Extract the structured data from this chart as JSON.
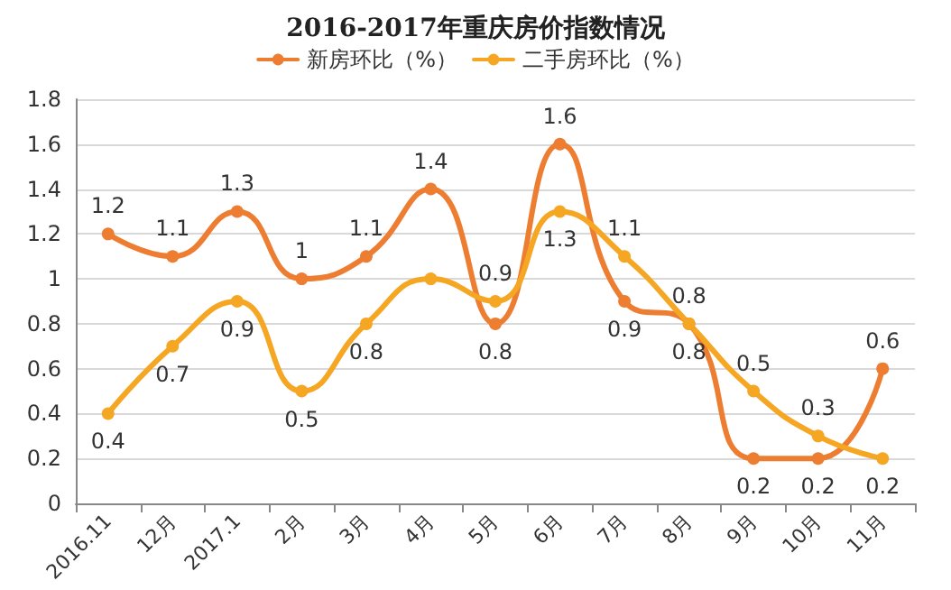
{
  "chart_data": {
    "type": "line",
    "title": "2016-2017年重庆房价指数情况",
    "categories": [
      "2016.11",
      "12月",
      "2017.1",
      "2月",
      "3月",
      "4月",
      "5月",
      "6月",
      "7月",
      "8月",
      "9月",
      "10月",
      "11月"
    ],
    "series": [
      {
        "name": "新房环比（%）",
        "color": "#ed7d31",
        "values": [
          1.2,
          1.1,
          1.3,
          1,
          1.1,
          1.4,
          0.8,
          1.6,
          0.9,
          0.8,
          0.2,
          0.2,
          0.6
        ],
        "value_labels": [
          "1.2",
          "1.1",
          "1.3",
          "1",
          "1.1",
          "1.4",
          "0.8",
          "1.6",
          "0.9",
          "0.8",
          "0.2",
          "0.2",
          "0.6"
        ]
      },
      {
        "name": "二手房环比（%）",
        "color": "#f5a623",
        "values": [
          0.4,
          0.7,
          0.9,
          0.5,
          0.8,
          1,
          0.9,
          1.3,
          1.1,
          0.8,
          0.5,
          0.3,
          0.2
        ],
        "value_labels": [
          "0.4",
          "0.7",
          "0.9",
          "0.5",
          "0.8",
          null,
          "0.9",
          "1.3",
          "1.1",
          "0.8",
          "0.5",
          "0.3",
          "0.2"
        ]
      }
    ],
    "ylim": [
      0,
      1.8
    ],
    "yticks": [
      0,
      0.2,
      0.4,
      0.6,
      0.8,
      1,
      1.2,
      1.4,
      1.6,
      1.8
    ],
    "grid": "y",
    "legend": "top",
    "marker": "circle",
    "line_style": "solid"
  }
}
